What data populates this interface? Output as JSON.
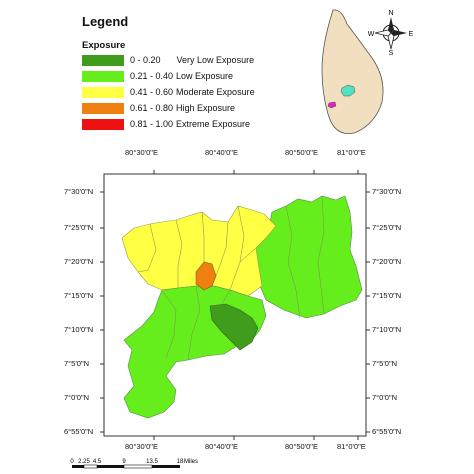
{
  "legend": {
    "title": "Legend",
    "subtitle": "Exposure",
    "classes": [
      {
        "range": "0 - 0.20",
        "label": "Very Low Exposure",
        "color": "#3f9c1c"
      },
      {
        "range": "0.21 - 0.40",
        "label": "Low Exposure",
        "color": "#66ee1c"
      },
      {
        "range": "0.41 - 0.60",
        "label": "Moderate Exposure",
        "color": "#ffff44"
      },
      {
        "range": "0.61 - 0.80",
        "label": "High Exposure",
        "color": "#f07f12"
      },
      {
        "range": "0.81 - 1.00",
        "label": "Extreme Exposure",
        "color": "#ee1111"
      }
    ]
  },
  "inset": {
    "island_color": "#f2dfc0",
    "study_area_color": "#55e0c0",
    "highlight_color": "#e020c8"
  },
  "compass": {
    "n": "N",
    "e": "E",
    "s": "S",
    "w": "W"
  },
  "axes": {
    "top_ticks": [
      "80°30'0\"E",
      "80°40'0\"E",
      "80°50'0\"E",
      "81°0'0\"E"
    ],
    "bottom_ticks": [
      "80°30'0\"E",
      "80°40'0\"E",
      "80°50'0\"E",
      "81°0'0\"E"
    ],
    "left_ticks": [
      "7°30'0\"N",
      "7°25'0\"N",
      "7°20'0\"N",
      "7°15'0\"N",
      "7°10'0\"N",
      "7°5'0\"N",
      "7°0'0\"N",
      "6°55'0\"N"
    ],
    "right_ticks": [
      "7°30'0\"N",
      "7°25'0\"N",
      "7°20'0\"N",
      "7°15'0\"N",
      "7°10'0\"N",
      "7°5'0\"N",
      "7°0'0\"N",
      "6°55'0\"N"
    ]
  },
  "scalebar": {
    "labels": [
      "0",
      "2.25",
      "4.5",
      "9",
      "13.5",
      "18"
    ],
    "unit": "Miles"
  }
}
